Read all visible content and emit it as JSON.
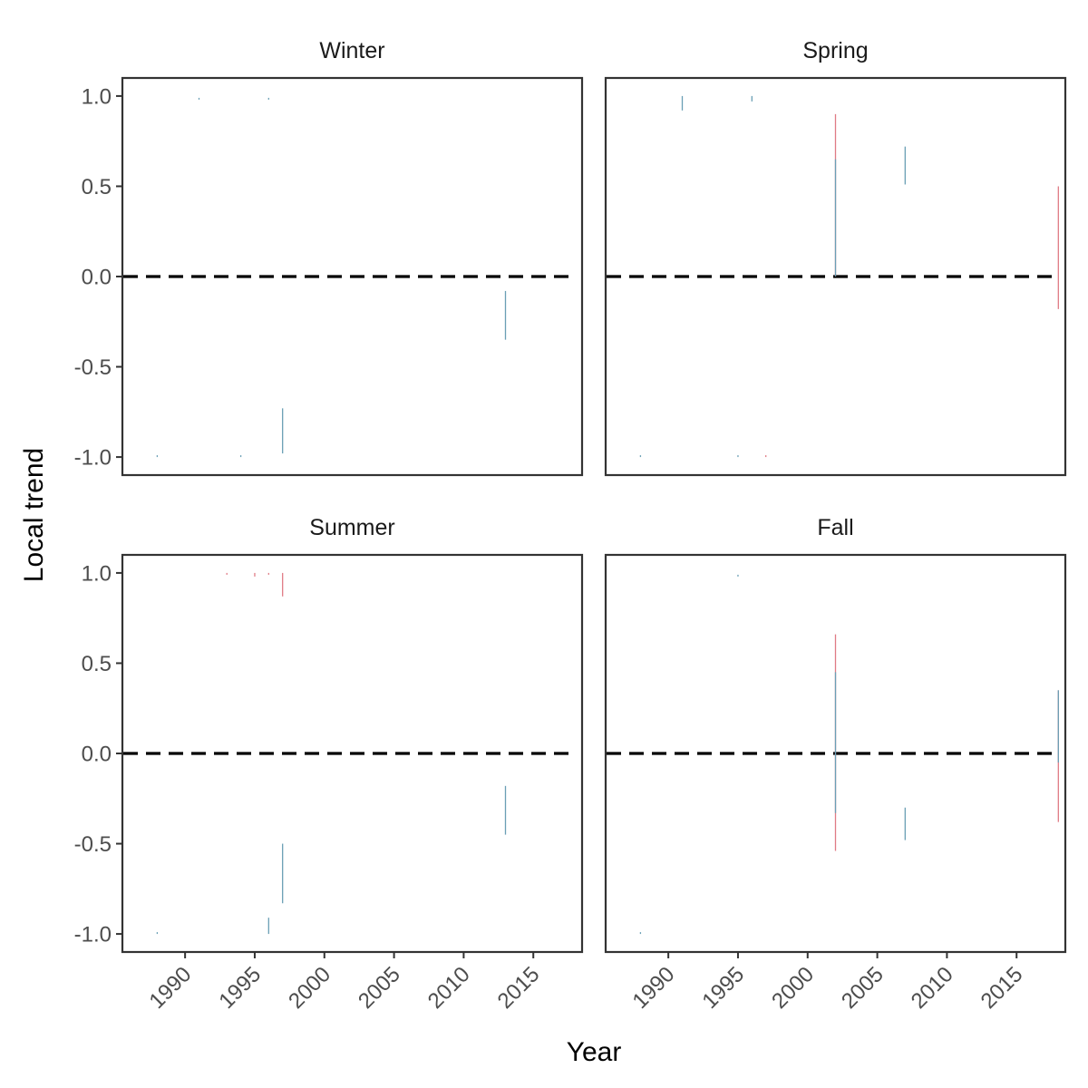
{
  "chart_data": {
    "type": "line",
    "xlabel": "Year",
    "ylabel": "Local trend",
    "xlim": [
      1985.5,
      2018.5
    ],
    "ylim": [
      -1.1,
      1.1
    ],
    "x_ticks": [
      1990,
      1995,
      2000,
      2005,
      2010,
      2015
    ],
    "x_tick_labels": [
      "1990",
      "1995",
      "2000",
      "2005",
      "2010",
      "2015"
    ],
    "y_ticks": [
      1.0,
      0.5,
      0.0,
      -0.5,
      -1.0
    ],
    "y_tick_labels": [
      "1.0",
      "0.5",
      "0.0",
      "-0.5",
      "-1.0"
    ],
    "reference_line": {
      "y": 0,
      "style": "dashed",
      "color": "#000000"
    },
    "colors": {
      "blue": "#6a9fb5",
      "red": "#e07b85"
    },
    "grid": false,
    "panels": [
      {
        "title": "Winter",
        "segments": [
          {
            "x": 1988,
            "y0": -1.0,
            "y1": -0.99,
            "color": "blue"
          },
          {
            "x": 1991,
            "y0": 0.98,
            "y1": 0.99,
            "color": "blue"
          },
          {
            "x": 1994,
            "y0": -1.0,
            "y1": -0.99,
            "color": "blue"
          },
          {
            "x": 1996,
            "y0": 0.98,
            "y1": 0.99,
            "color": "blue"
          },
          {
            "x": 1997,
            "y0": -0.98,
            "y1": -0.73,
            "color": "blue"
          },
          {
            "x": 2013,
            "y0": -0.35,
            "y1": -0.08,
            "color": "blue"
          }
        ]
      },
      {
        "title": "Spring",
        "segments": [
          {
            "x": 1988,
            "y0": -1.0,
            "y1": -0.99,
            "color": "blue"
          },
          {
            "x": 1991,
            "y0": 0.92,
            "y1": 1.0,
            "color": "blue"
          },
          {
            "x": 1995,
            "y0": -1.0,
            "y1": -0.99,
            "color": "blue"
          },
          {
            "x": 1996,
            "y0": 0.97,
            "y1": 1.0,
            "color": "blue"
          },
          {
            "x": 1997,
            "y0": -1.0,
            "y1": -0.99,
            "color": "red"
          },
          {
            "x": 2002,
            "y0": 0.0,
            "y1": 0.9,
            "color": "red"
          },
          {
            "x": 2002,
            "y0": 0.0,
            "y1": 0.65,
            "color": "blue"
          },
          {
            "x": 2007,
            "y0": 0.51,
            "y1": 0.72,
            "color": "blue"
          },
          {
            "x": 2018,
            "y0": -0.18,
            "y1": 0.5,
            "color": "red"
          }
        ]
      },
      {
        "title": "Summer",
        "segments": [
          {
            "x": 1988,
            "y0": -1.0,
            "y1": -0.99,
            "color": "blue"
          },
          {
            "x": 1993,
            "y0": 0.99,
            "y1": 1.0,
            "color": "red"
          },
          {
            "x": 1995,
            "y0": 0.98,
            "y1": 1.0,
            "color": "red"
          },
          {
            "x": 1996,
            "y0": 0.99,
            "y1": 1.0,
            "color": "red"
          },
          {
            "x": 1997,
            "y0": 0.87,
            "y1": 1.0,
            "color": "red"
          },
          {
            "x": 1996,
            "y0": -1.0,
            "y1": -0.91,
            "color": "blue"
          },
          {
            "x": 1997,
            "y0": -0.83,
            "y1": -0.5,
            "color": "blue"
          },
          {
            "x": 2013,
            "y0": -0.45,
            "y1": -0.18,
            "color": "blue"
          }
        ]
      },
      {
        "title": "Fall",
        "segments": [
          {
            "x": 1988,
            "y0": -1.0,
            "y1": -0.99,
            "color": "blue"
          },
          {
            "x": 1995,
            "y0": 0.98,
            "y1": 0.99,
            "color": "blue"
          },
          {
            "x": 2002,
            "y0": -0.54,
            "y1": 0.66,
            "color": "red"
          },
          {
            "x": 2002,
            "y0": -0.33,
            "y1": 0.45,
            "color": "blue"
          },
          {
            "x": 2007,
            "y0": -0.48,
            "y1": -0.3,
            "color": "blue"
          },
          {
            "x": 2018,
            "y0": -0.38,
            "y1": 0.35,
            "color": "red"
          },
          {
            "x": 2018,
            "y0": -0.05,
            "y1": 0.35,
            "color": "blue"
          }
        ]
      }
    ]
  }
}
